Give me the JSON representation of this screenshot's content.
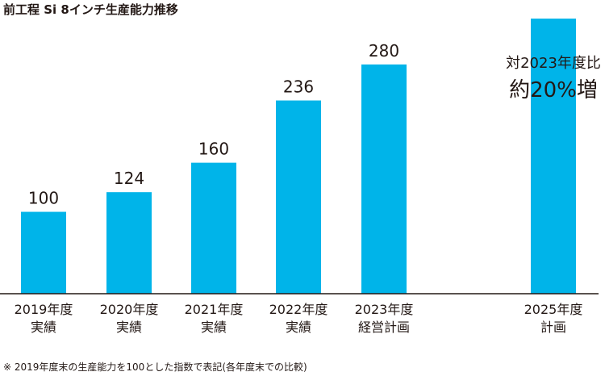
{
  "chart_data": {
    "type": "bar",
    "title": "前工程 Si 8インチ生産能力推移",
    "categories": [
      [
        "2019年度",
        "実績"
      ],
      [
        "2020年度",
        "実績"
      ],
      [
        "2021年度",
        "実績"
      ],
      [
        "2022年度",
        "実績"
      ],
      [
        "2023年度",
        "経営計画"
      ],
      [
        "2025年度",
        "計画"
      ]
    ],
    "values": [
      100,
      124,
      160,
      236,
      280,
      336
    ],
    "data_labels": [
      "100",
      "124",
      "160",
      "236",
      "280",
      ""
    ],
    "annotation": {
      "line1": "対2023年度比",
      "line2": "約20%増"
    },
    "bar_color": "#00b4e9",
    "axis_color": "#231815",
    "ylim": [
      0,
      340
    ],
    "grid": false,
    "legend": "none",
    "footnote": "※ 2019年度末の生産能力を100とした指数で表記(各年度末での比較)"
  }
}
